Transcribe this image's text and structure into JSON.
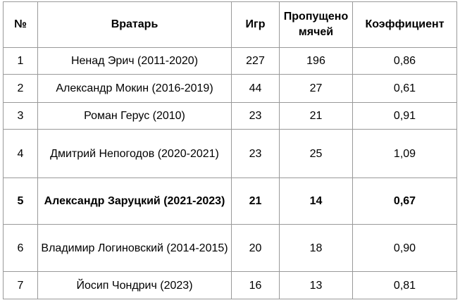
{
  "table": {
    "headers": {
      "num": "№",
      "goalkeeper": "Вратарь",
      "games": "Игр",
      "conceded": "Пропущено мячей",
      "coefficient": "Коэффициент"
    },
    "rows": [
      {
        "num": "1",
        "name": "Ненад Эрич (2011-2020)",
        "games": "227",
        "conceded": "196",
        "coefficient": "0,86"
      },
      {
        "num": "2",
        "name": "Александр Мокин (2016-2019)",
        "games": "44",
        "conceded": "27",
        "coefficient": "0,61"
      },
      {
        "num": "3",
        "name": "Роман Герус (2010)",
        "games": "23",
        "conceded": "21",
        "coefficient": "0,91"
      },
      {
        "num": "4",
        "name": "Дмитрий Непогодов (2020-2021)",
        "games": "23",
        "conceded": "25",
        "coefficient": "1,09"
      },
      {
        "num": "5",
        "name": "Александр Заруцкий (2021-2023)",
        "games": "21",
        "conceded": "14",
        "coefficient": "0,67"
      },
      {
        "num": "6",
        "name": "Владимир Логиновский (2014-2015)",
        "games": "20",
        "conceded": "18",
        "coefficient": "0,90"
      },
      {
        "num": "7",
        "name": "Йосип Чондрич (2023)",
        "games": "16",
        "conceded": "13",
        "coefficient": "0,81"
      }
    ]
  }
}
